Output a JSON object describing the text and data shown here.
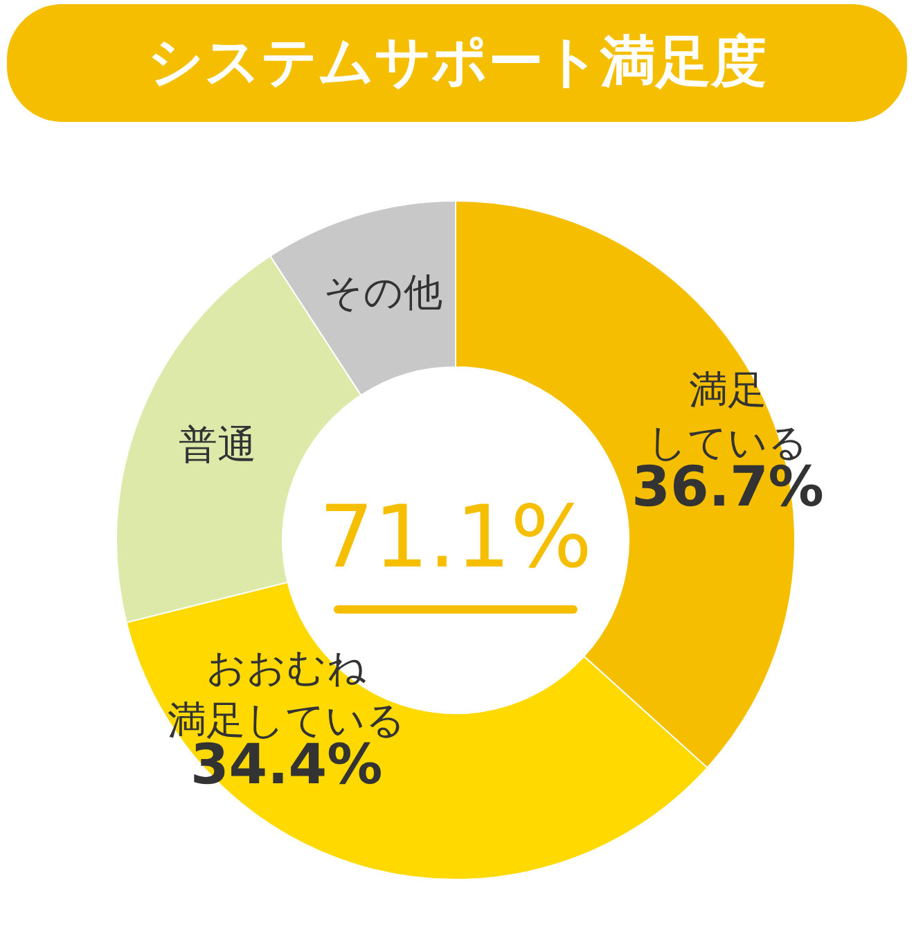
{
  "chart_data": {
    "type": "donut",
    "title": "システムサポート満足度",
    "categories": [
      "満足している",
      "おおむね満足している",
      "普通",
      "その他"
    ],
    "values": [
      36.7,
      34.4,
      19.7,
      9.2
    ],
    "colors": [
      "#f5bf00",
      "#ffd900",
      "#dde9a8",
      "#c8c8c8"
    ],
    "value_labels": [
      "36.7%",
      "34.4%",
      null,
      null
    ],
    "annotations": [
      "71.1%"
    ],
    "legend": false
  }
}
